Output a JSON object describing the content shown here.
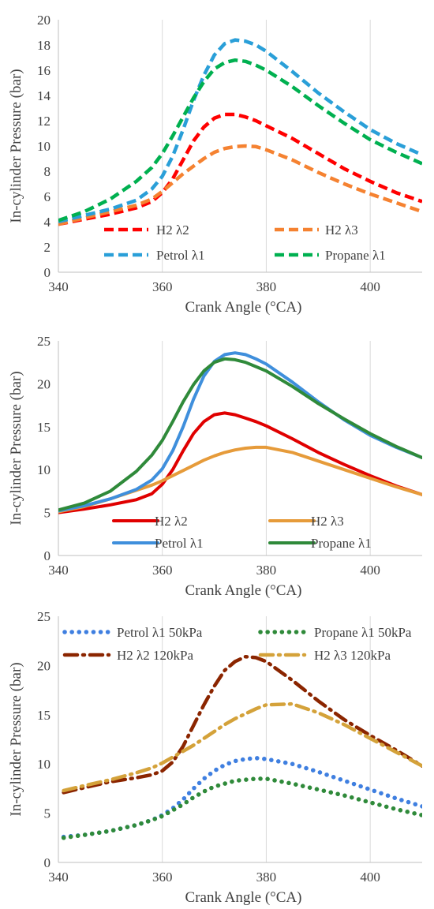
{
  "chart_data": [
    {
      "type": "line",
      "title": "",
      "xlabel": "Crank Angle (°CA)",
      "ylabel": "In-cylinder Pressure (bar)",
      "xlim": [
        340,
        410
      ],
      "ylim": [
        0,
        20
      ],
      "xticks": [
        340,
        360,
        380,
        400
      ],
      "yticks": [
        0,
        2,
        4,
        6,
        8,
        10,
        12,
        14,
        16,
        18,
        20
      ],
      "grid": "vertical",
      "legend_position": "bottom-inside, 2 columns",
      "series": [
        {
          "name": "H2 λ2",
          "color": "#ff0000",
          "style": "dashed",
          "x": [
            340,
            345,
            350,
            355,
            358,
            360,
            362,
            364,
            366,
            368,
            370,
            372,
            374,
            376,
            378,
            380,
            385,
            390,
            395,
            400,
            405,
            410
          ],
          "y": [
            3.8,
            4.2,
            4.6,
            5.1,
            5.6,
            6.3,
            7.4,
            8.9,
            10.4,
            11.5,
            12.2,
            12.5,
            12.5,
            12.3,
            12.0,
            11.6,
            10.6,
            9.4,
            8.2,
            7.2,
            6.3,
            5.6
          ]
        },
        {
          "name": "H2 λ3",
          "color": "#f58231",
          "style": "dashed",
          "x": [
            340,
            345,
            350,
            355,
            358,
            360,
            362,
            364,
            366,
            368,
            370,
            372,
            374,
            376,
            378,
            380,
            385,
            390,
            395,
            400,
            405,
            410
          ],
          "y": [
            3.8,
            4.3,
            4.8,
            5.3,
            5.8,
            6.4,
            7.1,
            7.8,
            8.4,
            9.0,
            9.5,
            9.8,
            9.95,
            10.0,
            9.95,
            9.7,
            8.9,
            7.9,
            7.0,
            6.2,
            5.5,
            4.8
          ]
        },
        {
          "name": "Petrol λ1",
          "color": "#2a9fd8",
          "style": "dashed",
          "x": [
            340,
            345,
            350,
            355,
            358,
            360,
            362,
            364,
            366,
            368,
            370,
            372,
            374,
            376,
            378,
            380,
            385,
            390,
            395,
            400,
            405,
            410
          ],
          "y": [
            4.0,
            4.5,
            5.0,
            5.7,
            6.6,
            7.6,
            9.2,
            11.3,
            13.6,
            15.6,
            17.2,
            18.1,
            18.4,
            18.3,
            18.0,
            17.5,
            15.9,
            14.2,
            12.7,
            11.3,
            10.2,
            9.3
          ]
        },
        {
          "name": "Propane λ1",
          "color": "#00b050",
          "style": "dashed",
          "x": [
            340,
            345,
            350,
            355,
            358,
            360,
            362,
            364,
            366,
            368,
            370,
            372,
            374,
            376,
            378,
            380,
            385,
            390,
            395,
            400,
            405,
            410
          ],
          "y": [
            4.1,
            4.8,
            5.8,
            7.2,
            8.3,
            9.4,
            10.8,
            12.3,
            13.8,
            15.1,
            16.1,
            16.6,
            16.8,
            16.7,
            16.4,
            16.0,
            14.7,
            13.2,
            11.8,
            10.5,
            9.5,
            8.6
          ]
        }
      ]
    },
    {
      "type": "line",
      "title": "",
      "xlabel": "Crank Angle (°CA)",
      "ylabel": "In-cylinder Pressure (bar)",
      "xlim": [
        340,
        410
      ],
      "ylim": [
        0,
        25
      ],
      "xticks": [
        340,
        360,
        380,
        400
      ],
      "yticks": [
        0,
        5,
        10,
        15,
        20,
        25
      ],
      "grid": "vertical",
      "legend_position": "bottom-inside, 2 columns",
      "series": [
        {
          "name": "H2 λ2",
          "color": "#e00000",
          "style": "solid",
          "x": [
            340,
            345,
            350,
            355,
            358,
            360,
            362,
            364,
            366,
            368,
            370,
            372,
            374,
            376,
            378,
            380,
            385,
            390,
            395,
            400,
            405,
            410
          ],
          "y": [
            5.0,
            5.4,
            5.9,
            6.5,
            7.2,
            8.3,
            10.0,
            12.2,
            14.2,
            15.6,
            16.4,
            16.6,
            16.4,
            16.0,
            15.6,
            15.1,
            13.6,
            12.0,
            10.6,
            9.3,
            8.1,
            7.1
          ]
        },
        {
          "name": "H2 λ3",
          "color": "#e69b3a",
          "style": "solid",
          "x": [
            340,
            345,
            350,
            355,
            358,
            360,
            362,
            364,
            366,
            368,
            370,
            372,
            374,
            376,
            378,
            380,
            385,
            390,
            395,
            400,
            405,
            410
          ],
          "y": [
            5.1,
            5.7,
            6.6,
            7.6,
            8.2,
            8.7,
            9.3,
            9.9,
            10.5,
            11.1,
            11.6,
            12.0,
            12.3,
            12.5,
            12.6,
            12.6,
            12.0,
            11.0,
            10.0,
            9.0,
            8.0,
            7.1
          ]
        },
        {
          "name": "Petrol λ1",
          "color": "#3f8fdc",
          "style": "solid",
          "x": [
            340,
            345,
            350,
            355,
            358,
            360,
            362,
            364,
            366,
            368,
            370,
            372,
            374,
            376,
            378,
            380,
            385,
            390,
            395,
            400,
            405,
            410
          ],
          "y": [
            5.2,
            5.8,
            6.6,
            7.7,
            8.8,
            10.1,
            12.2,
            15.0,
            18.2,
            20.9,
            22.6,
            23.4,
            23.6,
            23.4,
            22.9,
            22.3,
            20.2,
            17.9,
            15.8,
            14.0,
            12.6,
            11.4
          ]
        },
        {
          "name": "Propane λ1",
          "color": "#2f8a3a",
          "style": "solid",
          "x": [
            340,
            345,
            350,
            355,
            358,
            360,
            362,
            364,
            366,
            368,
            370,
            372,
            374,
            376,
            378,
            380,
            385,
            390,
            395,
            400,
            405,
            410
          ],
          "y": [
            5.3,
            6.1,
            7.5,
            9.8,
            11.7,
            13.4,
            15.6,
            17.9,
            19.9,
            21.5,
            22.5,
            22.9,
            22.8,
            22.5,
            22.0,
            21.5,
            19.7,
            17.7,
            15.9,
            14.2,
            12.7,
            11.4
          ]
        }
      ]
    },
    {
      "type": "line",
      "title": "",
      "xlabel": "Crank Angle (°CA)",
      "ylabel": "In-cylinder Pressure (bar)",
      "xlim": [
        340,
        410
      ],
      "ylim": [
        0,
        25
      ],
      "xticks": [
        340,
        360,
        380,
        400
      ],
      "yticks": [
        0,
        5,
        10,
        15,
        20,
        25
      ],
      "grid": "vertical",
      "legend_position": "top-inside, 2 columns",
      "series": [
        {
          "name": "Petrol λ1 50kPa",
          "color": "#3f7fe0",
          "style": "dotted",
          "x": [
            341,
            345,
            350,
            355,
            358,
            360,
            362,
            364,
            366,
            368,
            370,
            372,
            374,
            376,
            378,
            380,
            385,
            390,
            395,
            400,
            405,
            410
          ],
          "y": [
            2.6,
            2.8,
            3.2,
            3.8,
            4.3,
            4.8,
            5.5,
            6.4,
            7.5,
            8.5,
            9.3,
            9.9,
            10.3,
            10.5,
            10.6,
            10.5,
            10.0,
            9.2,
            8.3,
            7.4,
            6.5,
            5.7
          ]
        },
        {
          "name": "Propane λ1 50kPa",
          "color": "#2f8a3a",
          "style": "dotted",
          "x": [
            341,
            345,
            350,
            355,
            358,
            360,
            362,
            364,
            366,
            368,
            370,
            372,
            374,
            376,
            378,
            380,
            385,
            390,
            395,
            400,
            405,
            410
          ],
          "y": [
            2.5,
            2.8,
            3.2,
            3.8,
            4.3,
            4.7,
            5.3,
            5.9,
            6.6,
            7.2,
            7.7,
            8.0,
            8.3,
            8.4,
            8.5,
            8.5,
            8.0,
            7.4,
            6.8,
            6.1,
            5.4,
            4.8
          ]
        },
        {
          "name": "H2 λ2 120kPa",
          "color": "#8b2500",
          "style": "dashdot",
          "x": [
            341,
            345,
            350,
            355,
            358,
            360,
            362,
            364,
            366,
            368,
            370,
            372,
            374,
            376,
            378,
            380,
            385,
            390,
            395,
            400,
            405,
            410
          ],
          "y": [
            7.1,
            7.6,
            8.2,
            8.6,
            8.9,
            9.3,
            10.2,
            11.8,
            13.9,
            16.0,
            17.9,
            19.5,
            20.4,
            20.9,
            20.8,
            20.4,
            18.5,
            16.4,
            14.5,
            12.9,
            11.4,
            9.8
          ]
        },
        {
          "name": "H2 λ3 120kPa",
          "color": "#d4a23a",
          "style": "dashdot",
          "x": [
            341,
            345,
            350,
            355,
            358,
            360,
            362,
            364,
            366,
            368,
            370,
            372,
            374,
            376,
            378,
            380,
            385,
            390,
            395,
            400,
            405,
            410
          ],
          "y": [
            7.3,
            7.8,
            8.4,
            9.1,
            9.6,
            10.1,
            10.7,
            11.3,
            11.9,
            12.6,
            13.3,
            14.0,
            14.6,
            15.1,
            15.6,
            16.0,
            16.1,
            15.2,
            14.0,
            12.6,
            11.2,
            9.8
          ]
        }
      ]
    }
  ]
}
